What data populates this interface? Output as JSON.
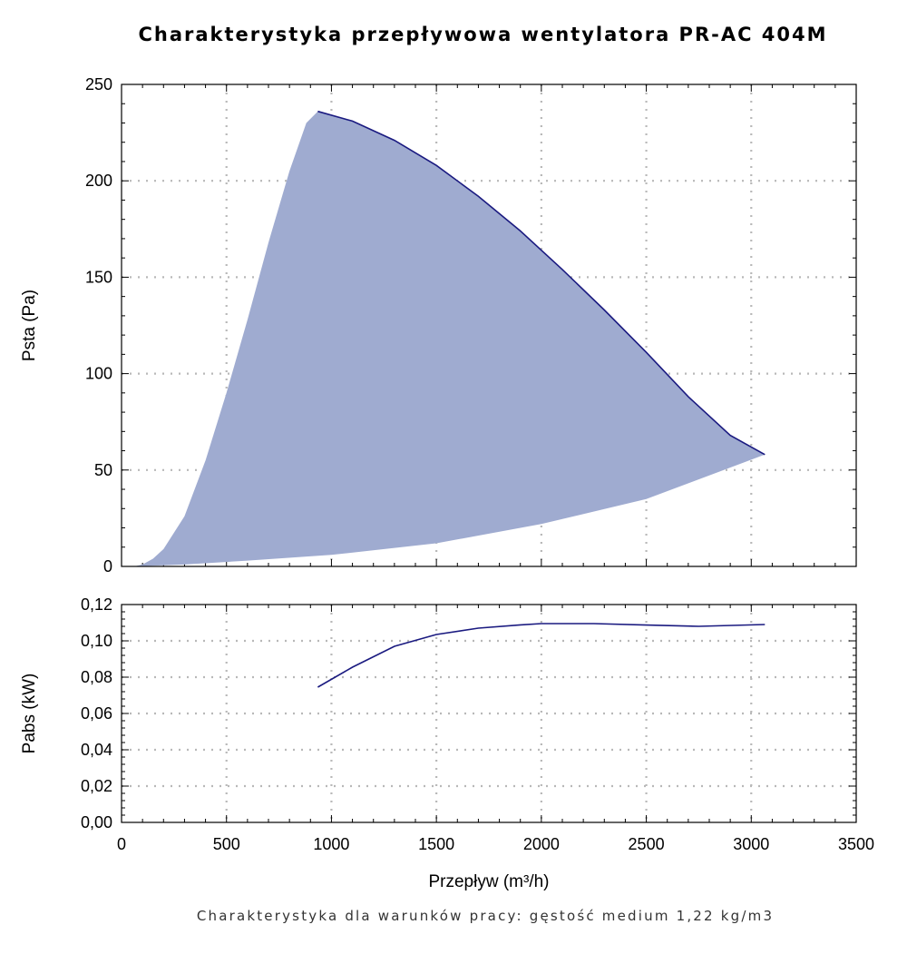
{
  "title": "Charakterystyka przepływowa wentylatora PR-AC 404M",
  "footnote": "Charakterystyka dla warunków pracy: gęstość medium 1,22 kg/m3",
  "chart_data": [
    {
      "type": "area",
      "name": "pressure",
      "ylabel": "Psta (Pa)",
      "xlim": [
        0,
        3500
      ],
      "ylim": [
        0,
        250
      ],
      "yticks": [
        0,
        50,
        100,
        150,
        200,
        250
      ],
      "ytick_labels": [
        "0",
        "50",
        "100",
        "150",
        "200",
        "250"
      ],
      "grid": true,
      "fill_color": "#9fabd0",
      "line_color": "#1a1a80",
      "upper_curve": [
        [
          935,
          236
        ],
        [
          1100,
          231
        ],
        [
          1300,
          221
        ],
        [
          1500,
          208
        ],
        [
          1700,
          192
        ],
        [
          1900,
          174
        ],
        [
          2100,
          154
        ],
        [
          2300,
          133
        ],
        [
          2500,
          111
        ],
        [
          2700,
          88
        ],
        [
          2900,
          68
        ],
        [
          3065,
          58
        ]
      ],
      "lower_curve": [
        [
          60,
          0
        ],
        [
          300,
          1
        ],
        [
          600,
          3
        ],
        [
          1000,
          6
        ],
        [
          1500,
          12
        ],
        [
          2000,
          22
        ],
        [
          2500,
          35
        ],
        [
          3065,
          58
        ]
      ],
      "left_curve": [
        [
          60,
          0
        ],
        [
          100,
          1
        ],
        [
          150,
          4
        ],
        [
          200,
          9
        ],
        [
          300,
          26
        ],
        [
          400,
          55
        ],
        [
          500,
          90
        ],
        [
          600,
          128
        ],
        [
          700,
          168
        ],
        [
          800,
          205
        ],
        [
          880,
          230
        ],
        [
          935,
          236
        ]
      ]
    },
    {
      "type": "line",
      "name": "power",
      "ylabel": "Pabs (kW)",
      "xlabel": "Przepływ (m³/h)",
      "xlim": [
        0,
        3500
      ],
      "ylim": [
        0,
        0.12
      ],
      "xticks": [
        0,
        500,
        1000,
        1500,
        2000,
        2500,
        3000,
        3500
      ],
      "xtick_labels": [
        "0",
        "500",
        "1000",
        "1500",
        "2000",
        "2500",
        "3000",
        "3500"
      ],
      "yticks": [
        0,
        0.02,
        0.04,
        0.06,
        0.08,
        0.1,
        0.12
      ],
      "ytick_labels": [
        "0,00",
        "0,02",
        "0,04",
        "0,06",
        "0,08",
        "0,10",
        "0,12"
      ],
      "grid": true,
      "line_color": "#1a1a80",
      "points": [
        [
          935,
          0.0745
        ],
        [
          1100,
          0.0855
        ],
        [
          1300,
          0.097
        ],
        [
          1500,
          0.1035
        ],
        [
          1700,
          0.107
        ],
        [
          1900,
          0.1088
        ],
        [
          2000,
          0.1095
        ],
        [
          2250,
          0.1095
        ],
        [
          2500,
          0.1087
        ],
        [
          2750,
          0.108
        ],
        [
          3065,
          0.109
        ]
      ]
    }
  ]
}
